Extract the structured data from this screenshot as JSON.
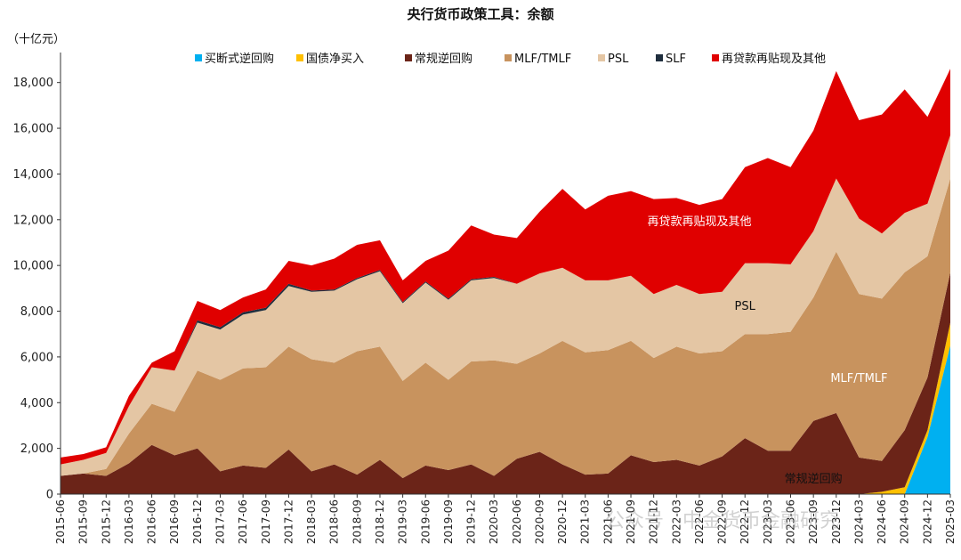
{
  "chart_data": {
    "type": "area",
    "stacked": true,
    "title": "央行货币政策工具：余额",
    "unit_label": "（十亿元）",
    "ylim": [
      0,
      19000
    ],
    "yticks": [
      0,
      2000,
      4000,
      6000,
      8000,
      10000,
      12000,
      14000,
      16000,
      18000
    ],
    "ytick_labels": [
      "0",
      "2,000",
      "4,000",
      "6,000",
      "8,000",
      "10,000",
      "12,000",
      "14,000",
      "16,000",
      "18,000"
    ],
    "legend_position": "top",
    "x": [
      "2015-06",
      "2015-09",
      "2015-12",
      "2016-03",
      "2016-06",
      "2016-09",
      "2016-12",
      "2017-03",
      "2017-06",
      "2017-09",
      "2017-12",
      "2018-03",
      "2018-06",
      "2018-09",
      "2018-12",
      "2019-03",
      "2019-06",
      "2019-09",
      "2019-12",
      "2020-03",
      "2020-06",
      "2020-09",
      "2020-12",
      "2021-03",
      "2021-06",
      "2021-09",
      "2021-12",
      "2022-03",
      "2022-06",
      "2022-09",
      "2022-12",
      "2023-03",
      "2023-06",
      "2023-09",
      "2023-12",
      "2024-03",
      "2024-06",
      "2024-09",
      "2024-12",
      "2025-03"
    ],
    "series": [
      {
        "name": "买断式逆回购",
        "color": "#00b0f0",
        "values": [
          0,
          0,
          0,
          0,
          0,
          0,
          0,
          0,
          0,
          0,
          0,
          0,
          0,
          0,
          0,
          0,
          0,
          0,
          0,
          0,
          0,
          0,
          0,
          0,
          0,
          0,
          0,
          0,
          0,
          0,
          0,
          0,
          0,
          0,
          0,
          0,
          0,
          0,
          2500,
          6500
        ]
      },
      {
        "name": "国债净买入",
        "color": "#ffc000",
        "values": [
          0,
          0,
          0,
          0,
          0,
          0,
          0,
          0,
          0,
          0,
          0,
          0,
          0,
          0,
          0,
          0,
          0,
          0,
          0,
          0,
          0,
          0,
          0,
          0,
          0,
          0,
          0,
          0,
          0,
          0,
          0,
          0,
          0,
          0,
          0,
          0,
          100,
          300,
          300,
          1000
        ]
      },
      {
        "name": "常规逆回购",
        "color": "#6b2418",
        "values": [
          800,
          900,
          800,
          1350,
          2150,
          1700,
          2000,
          1000,
          1250,
          1150,
          1950,
          1000,
          1300,
          850,
          1500,
          700,
          1250,
          1050,
          1300,
          800,
          1550,
          1850,
          1300,
          850,
          900,
          1700,
          1400,
          1500,
          1250,
          1650,
          2450,
          1900,
          1900,
          3200,
          3550,
          1600,
          1350,
          2500,
          2300,
          2200
        ]
      },
      {
        "name": "MLF/TMLF",
        "color": "#c8935e",
        "values": [
          0,
          0,
          300,
          1300,
          1800,
          1900,
          3400,
          4000,
          4250,
          4400,
          4500,
          4900,
          4450,
          5400,
          4950,
          4250,
          4500,
          3950,
          4500,
          5050,
          4150,
          4300,
          5400,
          5350,
          5400,
          5000,
          4550,
          4950,
          4900,
          4600,
          4550,
          5100,
          5200,
          5400,
          7050,
          7150,
          7100,
          6900,
          5300,
          4100
        ]
      },
      {
        "name": "PSL",
        "color": "#e4c6a4",
        "values": [
          500,
          600,
          700,
          1200,
          1600,
          1800,
          2100,
          2200,
          2350,
          2500,
          2650,
          2950,
          3150,
          3150,
          3300,
          3400,
          3500,
          3500,
          3550,
          3600,
          3500,
          3500,
          3200,
          3150,
          3050,
          2850,
          2800,
          2700,
          2600,
          2600,
          3100,
          3100,
          2950,
          2900,
          3200,
          3300,
          2850,
          2600,
          2300,
          1900
        ]
      },
      {
        "name": "SLF",
        "color": "#1f2e3e",
        "values": [
          0,
          0,
          0,
          0,
          0,
          0,
          100,
          100,
          100,
          100,
          100,
          50,
          50,
          50,
          50,
          50,
          50,
          50,
          50,
          50,
          0,
          0,
          0,
          0,
          0,
          0,
          0,
          0,
          0,
          0,
          0,
          0,
          0,
          0,
          0,
          0,
          0,
          0,
          0,
          0
        ]
      },
      {
        "name": "再贷款再贴现及其他",
        "color": "#e00000",
        "values": [
          300,
          250,
          250,
          450,
          200,
          850,
          850,
          750,
          650,
          800,
          1000,
          1100,
          1350,
          1450,
          1300,
          950,
          900,
          2100,
          2350,
          1850,
          2000,
          2700,
          3450,
          3100,
          3700,
          3700,
          4150,
          3800,
          3900,
          4050,
          4200,
          4600,
          4250,
          4400,
          4700,
          4300,
          5200,
          5400,
          3800,
          2900
        ]
      }
    ],
    "annotations": [
      {
        "text": "再贷款再贴现及其他",
        "x": "2022-06",
        "y": 11950,
        "color": "#ffffff"
      },
      {
        "text": "PSL",
        "x": "2022-12",
        "y": 8250,
        "color": "#111111"
      },
      {
        "text": "MLF/TMLF",
        "x": "2024-03",
        "y": 5100,
        "color": "#ffffff"
      },
      {
        "text": "常规逆回购",
        "x": "2023-09",
        "y": 700,
        "color": "#111111"
      }
    ]
  },
  "watermark": "公众号 · 中金货币金融研究"
}
